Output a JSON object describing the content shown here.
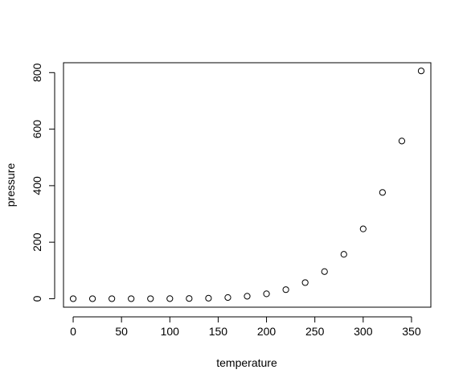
{
  "chart_data": {
    "type": "scatter",
    "title": "",
    "xlabel": "temperature",
    "ylabel": "pressure",
    "xlim": [
      -10,
      370
    ],
    "ylim": [
      -30,
      835
    ],
    "x_ticks": [
      0,
      50,
      100,
      150,
      200,
      250,
      300,
      350
    ],
    "y_ticks": [
      0,
      200,
      400,
      600,
      800
    ],
    "grid": false,
    "legend": "none",
    "marker": "open-circle",
    "colors": {
      "marker_stroke": "#000000",
      "axis": "#000000",
      "background": "#ffffff"
    },
    "x": [
      0,
      20,
      40,
      60,
      80,
      100,
      120,
      140,
      160,
      180,
      200,
      220,
      240,
      260,
      280,
      300,
      320,
      340,
      360
    ],
    "y": [
      0.0002,
      0.0012,
      0.006,
      0.03,
      0.09,
      0.27,
      0.75,
      1.85,
      4.2,
      8.8,
      17.3,
      32.1,
      57,
      96,
      157,
      247,
      376,
      558,
      806
    ]
  }
}
